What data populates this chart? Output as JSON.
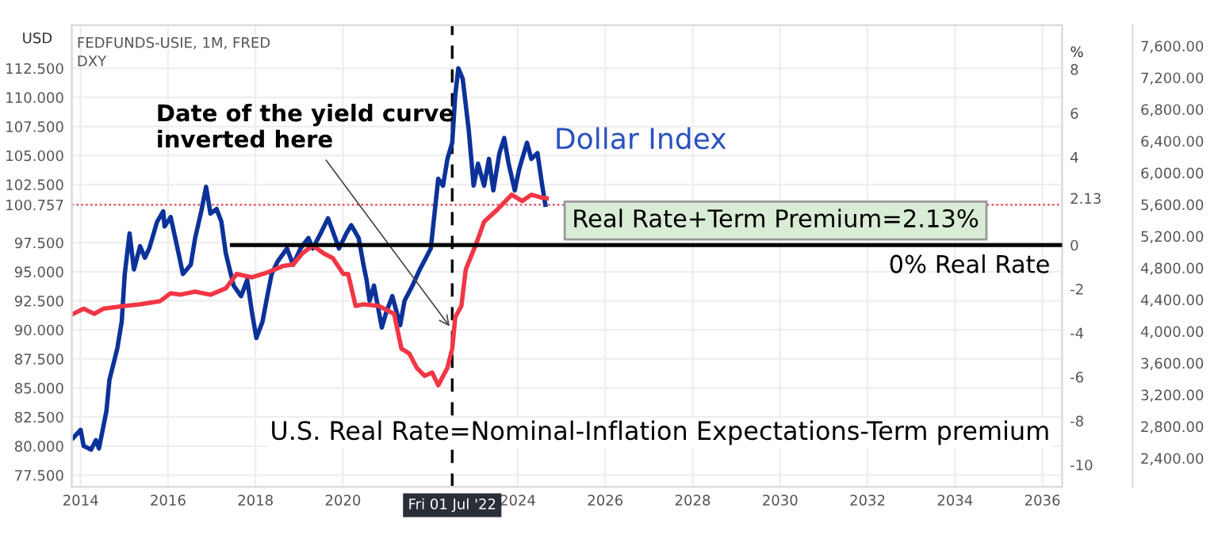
{
  "chart_data": {
    "type": "line",
    "title": "FEDFUNDS-USIE, 1M, FRED",
    "subtitle": "DXY",
    "ylabel": "USD",
    "y2label": "%",
    "xlim": [
      2013.8,
      2036.45
    ],
    "xticks": [
      2014,
      2016,
      2018,
      2020,
      2024,
      2026,
      2028,
      2030,
      2032,
      2034,
      2036
    ],
    "ylim": [
      76.5,
      116.2
    ],
    "yticks": [
      {
        "value": 77.5,
        "label": "77.500"
      },
      {
        "value": 80,
        "label": "80.000"
      },
      {
        "value": 82.5,
        "label": "82.500"
      },
      {
        "value": 85,
        "label": "85.000"
      },
      {
        "value": 87.5,
        "label": "87.500"
      },
      {
        "value": 90,
        "label": "90.000"
      },
      {
        "value": 92.5,
        "label": "92.500"
      },
      {
        "value": 95,
        "label": "95.000"
      },
      {
        "value": 97.5,
        "label": "97.500"
      },
      {
        "value": 100.757,
        "label": "100.757"
      },
      {
        "value": 102.5,
        "label": "102.500"
      },
      {
        "value": 105,
        "label": "105.000"
      },
      {
        "value": 107.5,
        "label": "107.500"
      },
      {
        "value": 110,
        "label": "110.000"
      },
      {
        "value": 112.5,
        "label": "112.500"
      }
    ],
    "y2lim": [
      -11,
      10
    ],
    "y2ticks": [
      8,
      6,
      4,
      2.13,
      0,
      -2,
      -4,
      -6,
      -8,
      -10
    ],
    "y3lim": [
      2040,
      7860
    ],
    "y3ticks": [
      {
        "value": 2400,
        "label": "2,400.00"
      },
      {
        "value": 2800,
        "label": "2,800.00"
      },
      {
        "value": 3200,
        "label": "3,200.00"
      },
      {
        "value": 3600,
        "label": "3,600.00"
      },
      {
        "value": 4000,
        "label": "4,000.00"
      },
      {
        "value": 4400,
        "label": "4,400.00"
      },
      {
        "value": 4800,
        "label": "4,800.00"
      },
      {
        "value": 5200,
        "label": "5,200.00"
      },
      {
        "value": 5600,
        "label": "5,600.00"
      },
      {
        "value": 6000,
        "label": "6,000.00"
      },
      {
        "value": 6400,
        "label": "6,400.00"
      },
      {
        "value": 6800,
        "label": "6,800.00"
      },
      {
        "value": 7200,
        "label": "7,200.00"
      },
      {
        "value": 7600,
        "label": "7,600.00"
      }
    ],
    "grid": true,
    "legend": false,
    "series": [
      {
        "name": "Dollar Index",
        "color": "#0c3299",
        "x": [
          2013.83,
          2014.0,
          2014.07,
          2014.24,
          2014.35,
          2014.42,
          2014.59,
          2014.66,
          2014.84,
          2014.94,
          2015.01,
          2015.12,
          2015.22,
          2015.36,
          2015.47,
          2015.57,
          2015.75,
          2015.89,
          2015.92,
          2016.06,
          2016.24,
          2016.34,
          2016.52,
          2016.62,
          2016.76,
          2016.87,
          2016.97,
          2017.11,
          2017.22,
          2017.32,
          2017.5,
          2017.67,
          2017.81,
          2017.92,
          2018.02,
          2018.16,
          2018.27,
          2018.37,
          2018.51,
          2018.72,
          2018.86,
          2019.03,
          2019.21,
          2019.31,
          2019.49,
          2019.66,
          2019.91,
          2020.08,
          2020.19,
          2020.36,
          2020.47,
          2020.54,
          2020.61,
          2020.71,
          2020.89,
          2020.99,
          2021.13,
          2021.31,
          2021.41,
          2021.59,
          2021.76,
          2022.01,
          2022.18,
          2022.29,
          2022.39,
          2022.5,
          2022.57,
          2022.64,
          2022.74,
          2022.88,
          2022.99,
          2023.09,
          2023.23,
          2023.34,
          2023.44,
          2023.58,
          2023.69,
          2023.79,
          2023.93,
          2024.03,
          2024.21,
          2024.31,
          2024.45,
          2024.56,
          2024.63
        ],
        "values": [
          80.7,
          81.4,
          80.0,
          79.7,
          80.5,
          79.8,
          83.0,
          85.7,
          88.4,
          90.7,
          94.8,
          98.3,
          95.2,
          97.2,
          96.2,
          97.0,
          99.3,
          100.2,
          98.9,
          99.7,
          96.6,
          94.8,
          95.6,
          97.9,
          100.2,
          102.3,
          100.0,
          100.4,
          99.3,
          96.6,
          93.8,
          92.9,
          94.3,
          91.5,
          89.3,
          90.7,
          92.9,
          94.8,
          95.9,
          97.0,
          95.6,
          97.0,
          97.9,
          97.0,
          98.3,
          99.6,
          97.0,
          98.3,
          99.0,
          97.9,
          95.6,
          94.3,
          92.5,
          93.8,
          90.2,
          91.5,
          92.9,
          90.4,
          92.5,
          93.8,
          95.2,
          97.0,
          103.0,
          102.4,
          104.7,
          106.1,
          110.2,
          112.5,
          111.6,
          107.1,
          102.4,
          104.3,
          102.4,
          104.7,
          102.0,
          105.2,
          106.5,
          104.3,
          102.0,
          103.8,
          106.1,
          104.7,
          105.2,
          102.4,
          100.757
        ]
      },
      {
        "color": "#f23645",
        "axis": "y2",
        "x": [
          2013.83,
          2014.07,
          2014.31,
          2014.52,
          2015.01,
          2015.36,
          2015.82,
          2016.06,
          2016.27,
          2016.62,
          2016.97,
          2017.32,
          2017.57,
          2017.92,
          2018.27,
          2018.62,
          2018.86,
          2019.07,
          2019.31,
          2019.56,
          2019.77,
          2020.01,
          2020.12,
          2020.29,
          2020.47,
          2020.82,
          2021.17,
          2021.34,
          2021.52,
          2021.69,
          2021.87,
          2022.04,
          2022.18,
          2022.39,
          2022.5,
          2022.57,
          2022.71,
          2022.81,
          2023.06,
          2023.23,
          2023.51,
          2023.86,
          2024.1,
          2024.31,
          2024.56,
          2024.66
        ],
        "values": [
          -3.13,
          -2.9,
          -3.13,
          -2.9,
          -2.77,
          -2.7,
          -2.55,
          -2.19,
          -2.26,
          -2.12,
          -2.26,
          -1.97,
          -1.32,
          -1.47,
          -1.25,
          -0.96,
          -0.89,
          -0.38,
          -0.02,
          -0.38,
          -0.6,
          -1.32,
          -1.32,
          -2.77,
          -2.7,
          -2.77,
          -3.13,
          -4.72,
          -4.94,
          -5.59,
          -5.95,
          -5.8,
          -6.38,
          -5.59,
          -4.72,
          -3.28,
          -2.77,
          -1.11,
          0.12,
          1.06,
          1.57,
          2.29,
          2.0,
          2.29,
          2.15,
          2.13
        ]
      },
      {
        "color": "#000000",
        "axis": "y2",
        "x": [
          2017.46,
          2036.45
        ],
        "values": [
          0,
          0
        ]
      }
    ],
    "ref_lines": [
      {
        "axis": "x",
        "value": 2022.5,
        "label": "Fri 01 Jul '22",
        "color": "#000000",
        "line_style": "dashed"
      },
      {
        "axis": "y",
        "value": 100.757,
        "color": "#f23645",
        "line_style": "dotted"
      }
    ],
    "annotations": [
      {
        "text": "Date of the yield curve\ninverted here",
        "x": 2022.5,
        "y": 90.0
      },
      "Real Rate+Term Premium=2.13%",
      "0% Real Rate",
      "U.S. Real Rate=Nominal-Inflation Expectations-Term premium"
    ]
  }
}
